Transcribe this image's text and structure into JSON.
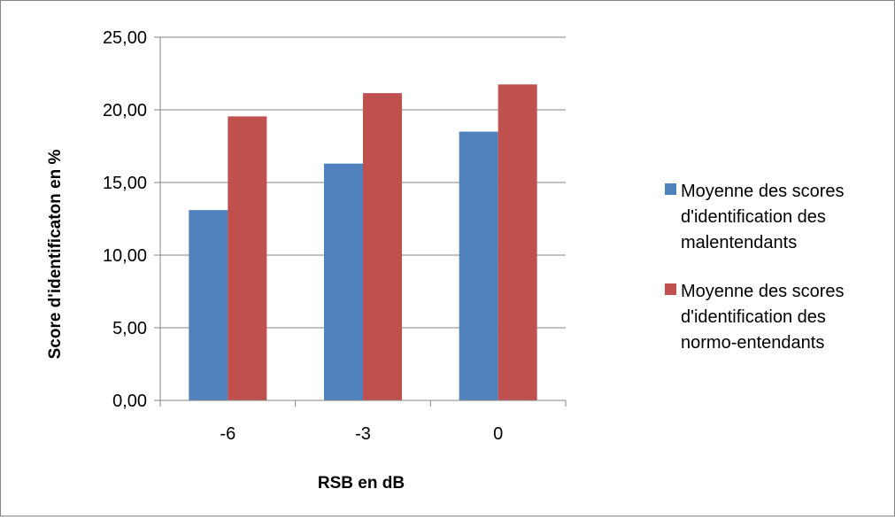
{
  "chart_data": {
    "type": "bar",
    "title": "",
    "xlabel": "RSB en dB",
    "ylabel": "Score d'identificaton en %",
    "categories": [
      "-6",
      "-3",
      "0"
    ],
    "series": [
      {
        "name": "Moyenne des scores d'identification des malentendants",
        "values": [
          13.1,
          16.3,
          18.5
        ],
        "color": "#4F81BD"
      },
      {
        "name": "Moyenne des scores d'identification des normo-entendants",
        "values": [
          19.55,
          21.15,
          21.75
        ],
        "color": "#C0504D"
      }
    ],
    "ylim": [
      0,
      25
    ],
    "yticks": [
      "0,00",
      "5,00",
      "10,00",
      "15,00",
      "20,00",
      "25,00"
    ],
    "grid": true,
    "legend_position": "right",
    "legend_lines": [
      [
        "Moyenne des scores",
        "d'identification des",
        "malentendants"
      ],
      [
        "Moyenne des scores",
        "d'identification des",
        "normo-entendants"
      ]
    ]
  }
}
